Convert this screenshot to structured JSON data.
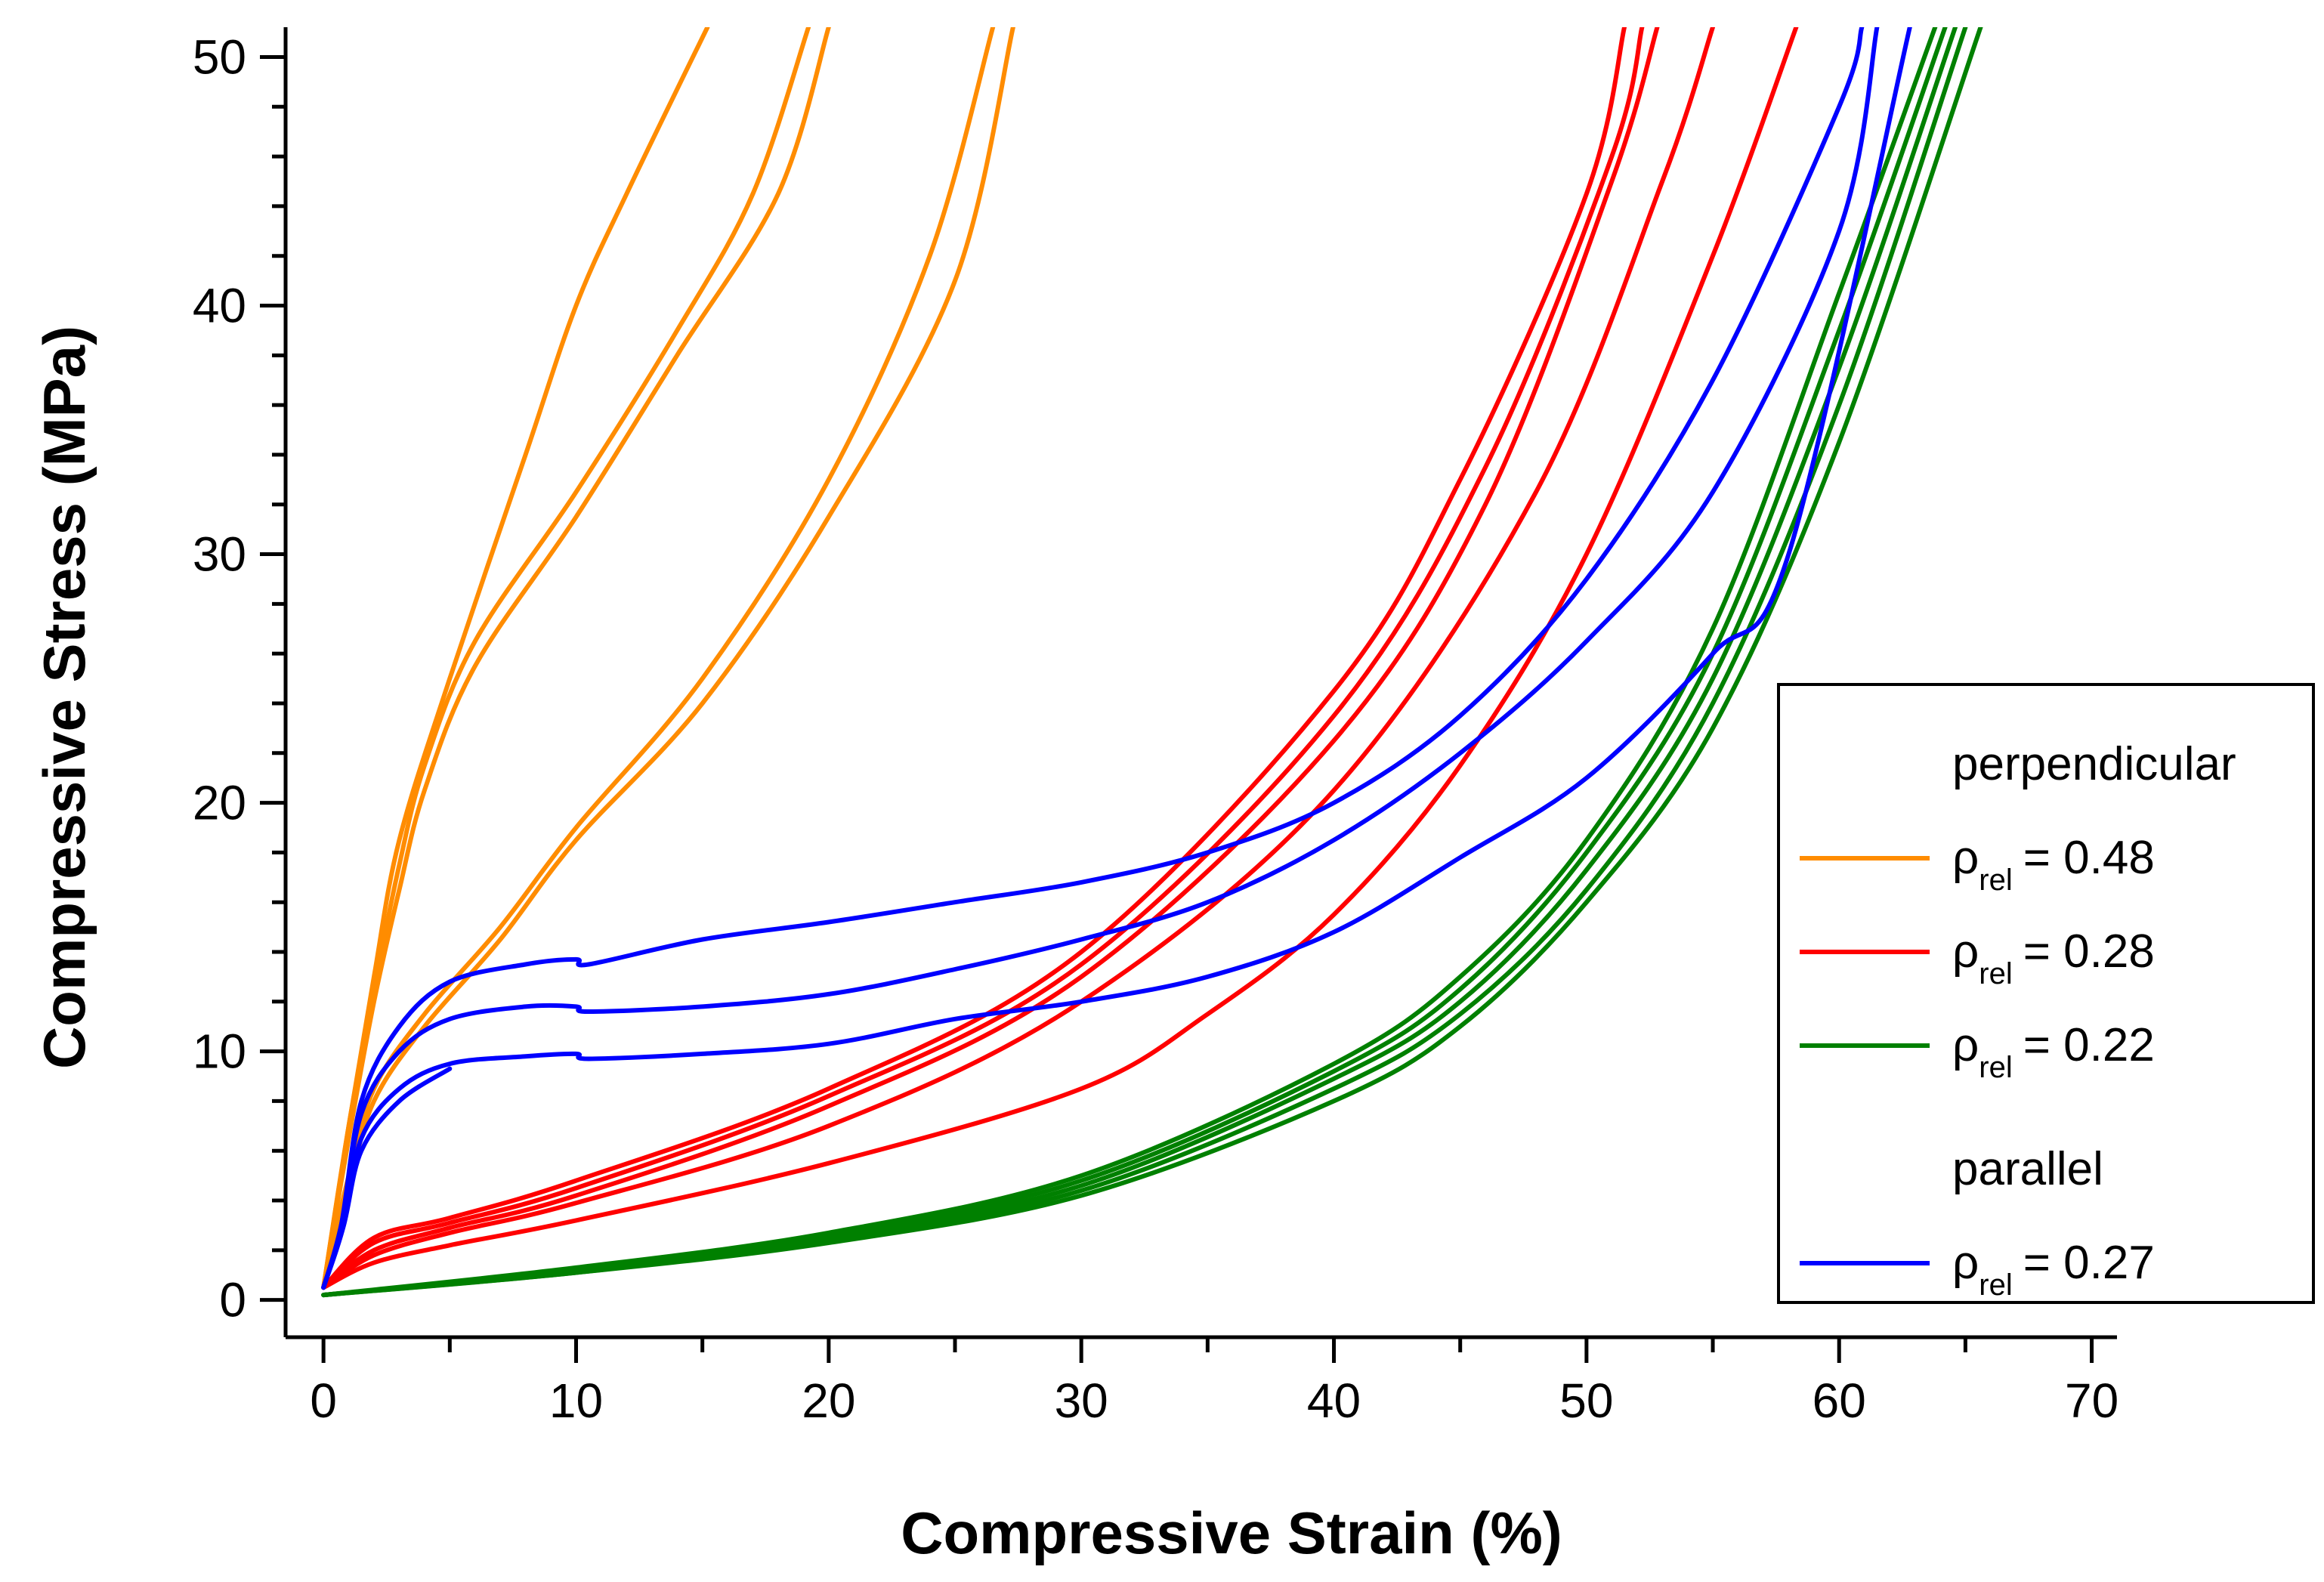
{
  "chart_data": {
    "type": "line",
    "title": "",
    "xlabel": "Compressive Strain (%)",
    "ylabel": "Compressive Stress (MPa)",
    "xlim": [
      -1.5,
      71
    ],
    "ylim": [
      -1.5,
      51.2
    ],
    "xticks": [
      0,
      10,
      20,
      30,
      40,
      50,
      60,
      70
    ],
    "yticks": [
      0,
      10,
      20,
      30,
      40,
      50
    ],
    "grid": false,
    "legend_position": "right",
    "legend": {
      "groups": [
        {
          "heading": "perpendicular",
          "entries": [
            {
              "symbol": "ρ",
              "subscript": "rel",
              "value_text": "= 0.48",
              "color": "#FF8C00"
            },
            {
              "symbol": "ρ",
              "subscript": "rel",
              "value_text": "= 0.28",
              "color": "#FF0000"
            },
            {
              "symbol": "ρ",
              "subscript": "rel",
              "value_text": "= 0.22",
              "color": "#008000"
            }
          ]
        },
        {
          "heading": "parallel",
          "entries": [
            {
              "symbol": "ρ",
              "subscript": "rel",
              "value_text": "= 0.27",
              "color": "#0000FF"
            }
          ]
        }
      ]
    },
    "series": [
      {
        "name": "perpendicular ρrel = 0.48 (1)",
        "color": "#FF8C00",
        "points": [
          [
            0,
            0.5
          ],
          [
            1,
            7
          ],
          [
            2,
            13
          ],
          [
            3,
            18.5
          ],
          [
            5,
            25
          ],
          [
            8,
            34
          ],
          [
            10,
            40
          ],
          [
            12,
            44.5
          ],
          [
            15.2,
            51.2
          ]
        ]
      },
      {
        "name": "perpendicular ρrel = 0.48 (2)",
        "color": "#FF8C00",
        "points": [
          [
            0,
            0.5
          ],
          [
            1,
            7
          ],
          [
            2,
            12.5
          ],
          [
            3,
            17.5
          ],
          [
            4,
            21.5
          ],
          [
            6,
            26.5
          ],
          [
            10,
            32.5
          ],
          [
            14,
            39
          ],
          [
            17,
            44.5
          ],
          [
            19.2,
            51.2
          ]
        ]
      },
      {
        "name": "perpendicular ρrel = 0.48 (3)",
        "color": "#FF8C00",
        "points": [
          [
            0,
            0.5
          ],
          [
            1,
            6.5
          ],
          [
            2,
            12
          ],
          [
            3,
            16.5
          ],
          [
            4,
            20.5
          ],
          [
            6,
            25.5
          ],
          [
            10,
            31.5
          ],
          [
            14,
            38
          ],
          [
            18,
            44.5
          ],
          [
            20,
            51.2
          ]
        ]
      },
      {
        "name": "perpendicular ρrel = 0.48 (4)",
        "color": "#FF8C00",
        "points": [
          [
            0,
            0.5
          ],
          [
            1,
            5
          ],
          [
            2,
            8.5
          ],
          [
            4,
            11.5
          ],
          [
            7,
            15
          ],
          [
            10,
            19
          ],
          [
            15,
            25
          ],
          [
            20,
            33
          ],
          [
            24,
            42
          ],
          [
            26.5,
            51.2
          ]
        ]
      },
      {
        "name": "perpendicular ρrel = 0.48 (5)",
        "color": "#FF8C00",
        "points": [
          [
            0,
            0.5
          ],
          [
            1,
            4.5
          ],
          [
            2,
            8
          ],
          [
            4,
            11
          ],
          [
            7,
            14.5
          ],
          [
            10,
            18.5
          ],
          [
            15,
            24
          ],
          [
            20,
            31.5
          ],
          [
            25,
            41
          ],
          [
            27.3,
            51.2
          ]
        ]
      },
      {
        "name": "perpendicular ρrel = 0.28 (1)",
        "color": "#FF0000",
        "points": [
          [
            0,
            0.5
          ],
          [
            2,
            2.5
          ],
          [
            5,
            3.3
          ],
          [
            10,
            4.8
          ],
          [
            20,
            8.5
          ],
          [
            30,
            14
          ],
          [
            40,
            24.5
          ],
          [
            45,
            33
          ],
          [
            50,
            44.5
          ],
          [
            51.5,
            51.2
          ]
        ]
      },
      {
        "name": "perpendicular ρrel = 0.28 (2)",
        "color": "#FF0000",
        "points": [
          [
            0,
            0.5
          ],
          [
            2,
            2.3
          ],
          [
            5,
            3.1
          ],
          [
            10,
            4.5
          ],
          [
            20,
            8.2
          ],
          [
            30,
            13.5
          ],
          [
            40,
            23.5
          ],
          [
            46,
            33.5
          ],
          [
            51,
            46
          ],
          [
            52.2,
            51.2
          ]
        ]
      },
      {
        "name": "perpendicular ρrel = 0.28 (3)",
        "color": "#FF0000",
        "points": [
          [
            0,
            0.5
          ],
          [
            2,
            2
          ],
          [
            5,
            2.9
          ],
          [
            10,
            4.2
          ],
          [
            20,
            7.8
          ],
          [
            30,
            13
          ],
          [
            40,
            22.5
          ],
          [
            46,
            32
          ],
          [
            51,
            45
          ],
          [
            52.8,
            51.2
          ]
        ]
      },
      {
        "name": "perpendicular ρrel = 0.28 (4)",
        "color": "#FF0000",
        "points": [
          [
            0,
            0.5
          ],
          [
            2,
            1.8
          ],
          [
            5,
            2.7
          ],
          [
            10,
            3.9
          ],
          [
            20,
            7
          ],
          [
            30,
            12
          ],
          [
            40,
            20.5
          ],
          [
            48,
            32.5
          ],
          [
            53,
            45
          ],
          [
            55,
            51.2
          ]
        ]
      },
      {
        "name": "perpendicular ρrel = 0.28 (5)",
        "color": "#FF0000",
        "points": [
          [
            0,
            0.5
          ],
          [
            2,
            1.5
          ],
          [
            5,
            2.2
          ],
          [
            10,
            3.2
          ],
          [
            20,
            5.5
          ],
          [
            30,
            8.5
          ],
          [
            35,
            11.5
          ],
          [
            40,
            15.5
          ],
          [
            45,
            21.5
          ],
          [
            50,
            30
          ],
          [
            55,
            42
          ],
          [
            58.3,
            51.2
          ]
        ]
      },
      {
        "name": "perpendicular ρrel = 0.22 (1)",
        "color": "#008000",
        "points": [
          [
            0,
            0.2
          ],
          [
            10,
            1.3
          ],
          [
            20,
            2.7
          ],
          [
            30,
            5
          ],
          [
            40,
            9.5
          ],
          [
            45,
            13
          ],
          [
            50,
            18.5
          ],
          [
            55,
            27
          ],
          [
            60,
            40.5
          ],
          [
            63.8,
            51.2
          ]
        ]
      },
      {
        "name": "perpendicular ρrel = 0.22 (2)",
        "color": "#008000",
        "points": [
          [
            0,
            0.2
          ],
          [
            10,
            1.2
          ],
          [
            20,
            2.6
          ],
          [
            30,
            4.8
          ],
          [
            40,
            9.2
          ],
          [
            45,
            12.5
          ],
          [
            50,
            18
          ],
          [
            55,
            26
          ],
          [
            60,
            39
          ],
          [
            64.2,
            51.2
          ]
        ]
      },
      {
        "name": "perpendicular ρrel = 0.22 (3)",
        "color": "#008000",
        "points": [
          [
            0,
            0.2
          ],
          [
            10,
            1.2
          ],
          [
            20,
            2.5
          ],
          [
            30,
            4.6
          ],
          [
            40,
            8.9
          ],
          [
            45,
            12
          ],
          [
            50,
            17.3
          ],
          [
            55,
            25
          ],
          [
            60,
            37.5
          ],
          [
            64.6,
            51.2
          ]
        ]
      },
      {
        "name": "perpendicular ρrel = 0.22 (4)",
        "color": "#008000",
        "points": [
          [
            0,
            0.2
          ],
          [
            10,
            1.1
          ],
          [
            20,
            2.4
          ],
          [
            30,
            4.4
          ],
          [
            40,
            8.5
          ],
          [
            45,
            11.5
          ],
          [
            50,
            16.5
          ],
          [
            55,
            24
          ],
          [
            60,
            36
          ],
          [
            65,
            51.2
          ]
        ]
      },
      {
        "name": "perpendicular ρrel = 0.22 (5)",
        "color": "#008000",
        "points": [
          [
            0,
            0.2
          ],
          [
            10,
            1.1
          ],
          [
            20,
            2.3
          ],
          [
            30,
            4.2
          ],
          [
            40,
            8
          ],
          [
            45,
            11
          ],
          [
            50,
            16
          ],
          [
            55,
            23
          ],
          [
            60,
            34.5
          ],
          [
            65.6,
            51.2
          ]
        ]
      },
      {
        "name": "parallel ρrel = 0.27 (1)",
        "color": "#0000FF",
        "points": [
          [
            0,
            0.5
          ],
          [
            0.7,
            3
          ],
          [
            1.5,
            8
          ],
          [
            3,
            11
          ],
          [
            5,
            12.8
          ],
          [
            8,
            13.5
          ],
          [
            10,
            13.7
          ],
          [
            10.5,
            13.5
          ],
          [
            15,
            14.5
          ],
          [
            20,
            15.2
          ],
          [
            25,
            16
          ],
          [
            30,
            16.8
          ],
          [
            35,
            18
          ],
          [
            40,
            20
          ],
          [
            45,
            23.5
          ],
          [
            50,
            29
          ],
          [
            55,
            37
          ],
          [
            60,
            48
          ],
          [
            60.9,
            51.2
          ]
        ]
      },
      {
        "name": "parallel ρrel = 0.27 (2)",
        "color": "#0000FF",
        "points": [
          [
            0,
            0.5
          ],
          [
            0.7,
            3
          ],
          [
            1.5,
            7.5
          ],
          [
            3,
            10
          ],
          [
            5,
            11.3
          ],
          [
            8,
            11.8
          ],
          [
            10,
            11.8
          ],
          [
            10.5,
            11.6
          ],
          [
            15,
            11.8
          ],
          [
            20,
            12.3
          ],
          [
            25,
            13.3
          ],
          [
            30,
            14.5
          ],
          [
            35,
            16
          ],
          [
            40,
            18.5
          ],
          [
            45,
            22
          ],
          [
            50,
            26.5
          ],
          [
            55,
            32.5
          ],
          [
            60,
            43
          ],
          [
            61.5,
            51.2
          ]
        ]
      },
      {
        "name": "parallel ρrel = 0.27 (3)",
        "color": "#0000FF",
        "points": [
          [
            0,
            0.5
          ],
          [
            0.8,
            3
          ],
          [
            1.5,
            6.5
          ],
          [
            3,
            8.5
          ],
          [
            5,
            9.5
          ],
          [
            8,
            9.8
          ],
          [
            10,
            9.9
          ],
          [
            10.5,
            9.7
          ],
          [
            15,
            9.9
          ],
          [
            20,
            10.3
          ],
          [
            25,
            11.3
          ],
          [
            30,
            12
          ],
          [
            35,
            13
          ],
          [
            40,
            14.8
          ],
          [
            45,
            17.8
          ],
          [
            50,
            21
          ],
          [
            55,
            26
          ],
          [
            58,
            30
          ],
          [
            62.8,
            51.2
          ]
        ]
      },
      {
        "name": "parallel ρrel = 0.27 (4)",
        "color": "#0000FF",
        "points": [
          [
            0,
            0.5
          ],
          [
            0.8,
            3
          ],
          [
            1.5,
            6
          ],
          [
            3,
            8
          ],
          [
            5,
            9.3
          ]
        ]
      }
    ]
  }
}
